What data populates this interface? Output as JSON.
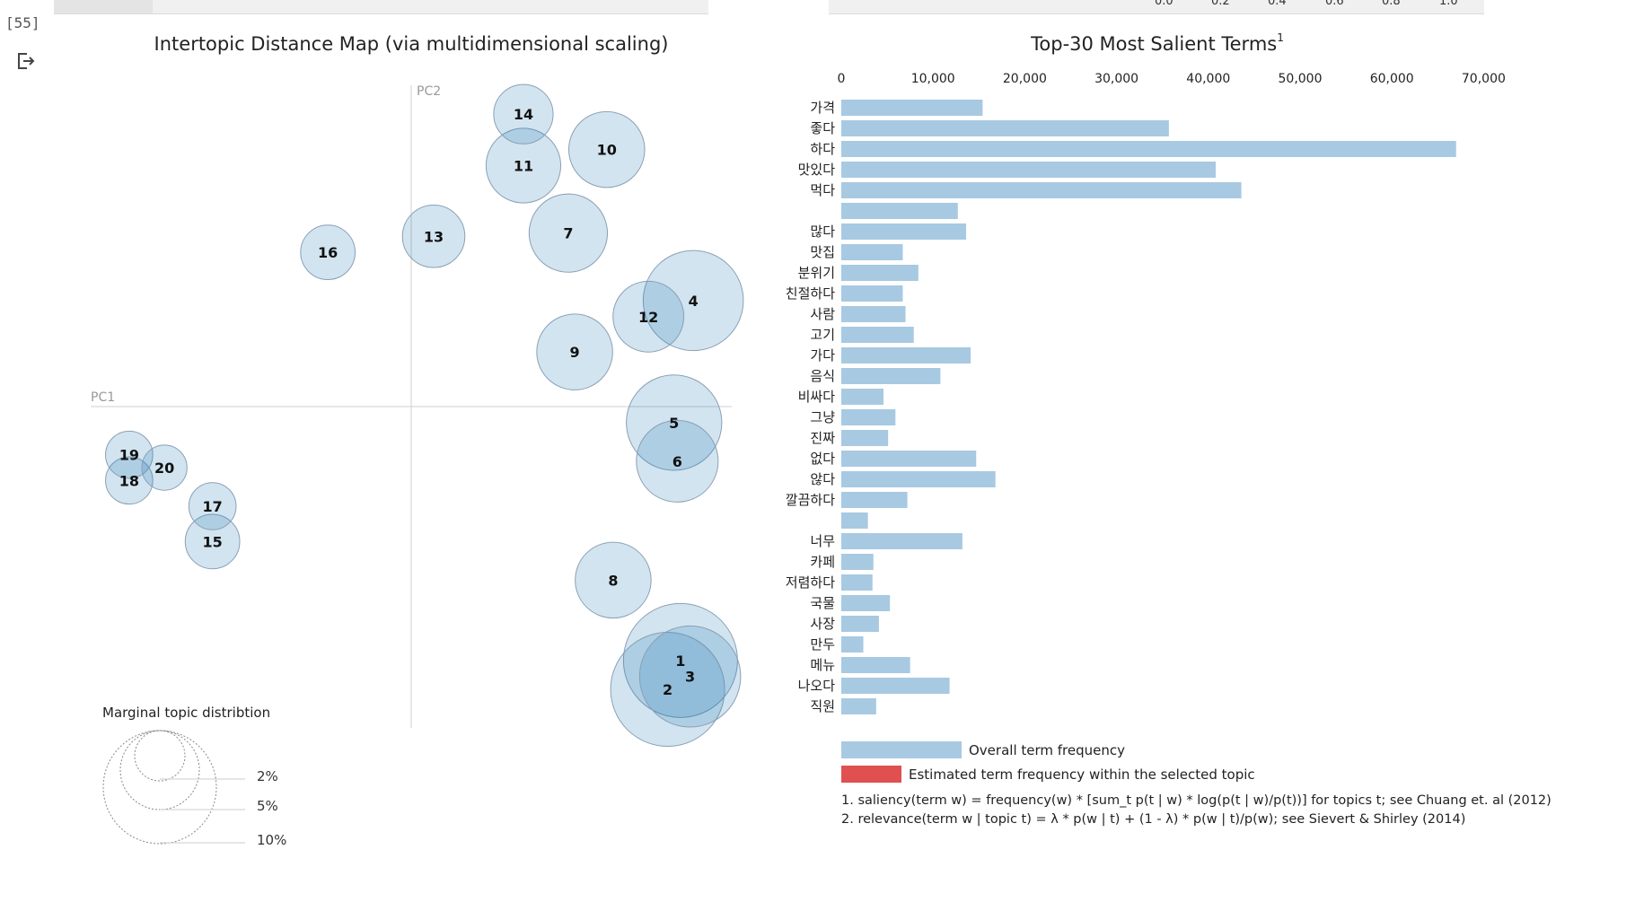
{
  "cell": {
    "prompt": "[55]"
  },
  "lambda_slider": {
    "ticks": [
      "0.0",
      "0.2",
      "0.4",
      "0.6",
      "0.8",
      "1.0"
    ]
  },
  "map": {
    "title": "Intertopic Distance Map (via multidimensional scaling)",
    "pc1_label": "PC1",
    "pc2_label": "PC2",
    "legend_title": "Marginal topic distribtion",
    "legend_sizes": [
      "2%",
      "5%",
      "10%"
    ]
  },
  "terms": {
    "title": "Top-30 Most Salient Terms",
    "title_sup": "1",
    "legend_overall": "Overall term frequency",
    "legend_estimated": "Estimated term frequency within the selected topic",
    "footnote1": "1. saliency(term w) = frequency(w) * [sum_t p(t | w) * log(p(t | w)/p(t))] for topics t; see Chuang et. al (2012)",
    "footnote2": "2. relevance(term w | topic t) = λ * p(w | t) + (1 - λ) * p(w | t)/p(w); see Sievert & Shirley (2014)"
  },
  "colors": {
    "topic_fill": "#1f77b4",
    "bar_overall": "#a8c9e2",
    "bar_estimated": "#e05050",
    "axis": "#c8c8c8",
    "topbar": "#f0f0f0"
  },
  "chart_data": [
    {
      "type": "scatter",
      "title": "Intertopic Distance Map (via multidimensional scaling)",
      "xlabel": "PC1",
      "ylabel": "PC2",
      "xlim": [
        -1.0,
        1.0
      ],
      "ylim": [
        -1.0,
        1.0
      ],
      "points": [
        {
          "topic": "1",
          "x": 0.84,
          "y": -0.79,
          "size_pct": 7.0
        },
        {
          "topic": "2",
          "x": 0.8,
          "y": -0.88,
          "size_pct": 7.0
        },
        {
          "topic": "3",
          "x": 0.87,
          "y": -0.84,
          "size_pct": 5.5
        },
        {
          "topic": "4",
          "x": 0.88,
          "y": 0.33,
          "size_pct": 5.4
        },
        {
          "topic": "5",
          "x": 0.82,
          "y": -0.05,
          "size_pct": 4.9
        },
        {
          "topic": "6",
          "x": 0.83,
          "y": -0.17,
          "size_pct": 3.6
        },
        {
          "topic": "7",
          "x": 0.49,
          "y": 0.54,
          "size_pct": 3.3
        },
        {
          "topic": "8",
          "x": 0.63,
          "y": -0.54,
          "size_pct": 3.1
        },
        {
          "topic": "9",
          "x": 0.51,
          "y": 0.17,
          "size_pct": 3.1
        },
        {
          "topic": "10",
          "x": 0.61,
          "y": 0.8,
          "size_pct": 3.1
        },
        {
          "topic": "11",
          "x": 0.35,
          "y": 0.75,
          "size_pct": 3.0
        },
        {
          "topic": "12",
          "x": 0.74,
          "y": 0.28,
          "size_pct": 2.7
        },
        {
          "topic": "13",
          "x": 0.07,
          "y": 0.53,
          "size_pct": 2.1
        },
        {
          "topic": "14",
          "x": 0.35,
          "y": 0.91,
          "size_pct": 1.9
        },
        {
          "topic": "15",
          "x": -0.62,
          "y": -0.42,
          "size_pct": 1.6
        },
        {
          "topic": "16",
          "x": -0.26,
          "y": 0.48,
          "size_pct": 1.6
        },
        {
          "topic": "17",
          "x": -0.62,
          "y": -0.31,
          "size_pct": 1.2
        },
        {
          "topic": "18",
          "x": -0.88,
          "y": -0.23,
          "size_pct": 1.2
        },
        {
          "topic": "19",
          "x": -0.88,
          "y": -0.15,
          "size_pct": 1.2
        },
        {
          "topic": "20",
          "x": -0.77,
          "y": -0.19,
          "size_pct": 1.1
        }
      ]
    },
    {
      "type": "bar",
      "orientation": "horizontal",
      "title": "Top-30 Most Salient Terms",
      "xlim": [
        0,
        72000
      ],
      "xticks": [
        "0",
        "10,000",
        "20,000",
        "30,000",
        "40,000",
        "50,000",
        "60,000",
        "70,000"
      ],
      "categories": [
        "가격",
        "좋다",
        "하다",
        "맛있다",
        "먹다",
        "",
        "많다",
        "맛집",
        "분위기",
        "친절하다",
        "사람",
        "고기",
        "가다",
        "음식",
        "비싸다",
        "그냥",
        "진짜",
        "없다",
        "않다",
        "깔끔하다",
        "",
        "너무",
        "카페",
        "저렴하다",
        "국물",
        "사장",
        "만두",
        "메뉴",
        "나오다",
        "직원"
      ],
      "series": [
        {
          "name": "Overall term frequency",
          "values": [
            15400,
            35700,
            67000,
            40800,
            43600,
            12700,
            13600,
            6700,
            8400,
            6700,
            7000,
            7900,
            14100,
            10800,
            4600,
            5900,
            5100,
            14700,
            16800,
            7200,
            2900,
            13200,
            3500,
            3400,
            5300,
            4100,
            2400,
            7500,
            11800,
            3800
          ]
        }
      ]
    }
  ]
}
